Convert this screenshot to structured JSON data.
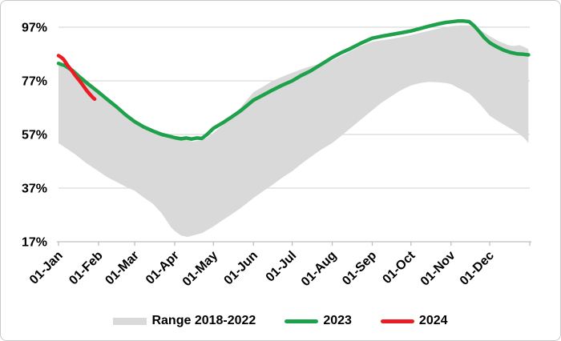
{
  "chart_data": {
    "type": "line",
    "title": "",
    "grid": {
      "horizontal": true,
      "color": "#d9d9d9"
    },
    "axis_color": "#bfbfbf",
    "text_color": "#000000",
    "y_axis": {
      "tick_labels": [
        "97%",
        "77%",
        "57%",
        "37%",
        "17%"
      ],
      "tick_values": [
        97,
        77,
        57,
        37,
        17
      ],
      "min": 17,
      "max": 97
    },
    "x_axis": {
      "tick_labels": [
        "01-Jan",
        "01-Feb",
        "01-Mar",
        "01-Apr",
        "01-May",
        "01-Jun",
        "01-Jul",
        "01-Aug",
        "01-Sep",
        "01-Oct",
        "01-Nov",
        "01-Dec"
      ],
      "tick_days": [
        1,
        32,
        60,
        91,
        121,
        152,
        182,
        213,
        244,
        274,
        305,
        335,
        366
      ],
      "unit": "day-of-year"
    },
    "band": {
      "name": "Range 2018-2022",
      "color": "#d9d9d9",
      "days": [
        1,
        8,
        15,
        22,
        32,
        39,
        46,
        53,
        60,
        67,
        74,
        81,
        88,
        91,
        96,
        101,
        105,
        112,
        116,
        121,
        128,
        135,
        142,
        152,
        160,
        166,
        174,
        182,
        189,
        196,
        204,
        213,
        220,
        227,
        235,
        244,
        251,
        258,
        265,
        274,
        281,
        288,
        295,
        301,
        305,
        312,
        319,
        323,
        327,
        331,
        335,
        342,
        349,
        353,
        358,
        362,
        365
      ],
      "low": [
        53.8,
        51.5,
        49.2,
        46.5,
        43.3,
        41.0,
        39.3,
        37.5,
        36.0,
        33.5,
        31.2,
        27.5,
        22.5,
        21.0,
        19.3,
        18.8,
        19.3,
        20.2,
        21.3,
        22.7,
        25.0,
        27.2,
        29.5,
        33.3,
        36.0,
        38.0,
        40.8,
        43.3,
        46.0,
        48.5,
        51.2,
        53.8,
        56.5,
        59.3,
        62.5,
        66.0,
        68.8,
        71.0,
        73.2,
        75.3,
        76.2,
        76.6,
        76.5,
        76.2,
        75.8,
        74.0,
        72.3,
        70.5,
        68.5,
        66.3,
        64.0,
        61.8,
        59.8,
        58.7,
        57.2,
        55.5,
        53.8
      ],
      "high": [
        83.0,
        81.2,
        79.0,
        76.0,
        72.5,
        69.8,
        67.2,
        64.2,
        61.6,
        59.6,
        58.1,
        56.8,
        56.0,
        55.6,
        55.2,
        54.8,
        54.4,
        54.8,
        55.8,
        57.5,
        60.5,
        63.8,
        67.0,
        72.8,
        75.0,
        76.8,
        78.5,
        80.0,
        81.3,
        82.4,
        83.4,
        84.6,
        86.3,
        88.0,
        90.0,
        91.6,
        92.1,
        92.6,
        93.2,
        94.1,
        94.9,
        95.7,
        96.5,
        97.1,
        97.4,
        97.7,
        97.7,
        97.3,
        96.2,
        94.9,
        93.7,
        91.8,
        90.4,
        90.0,
        90.3,
        89.6,
        88.8
      ]
    },
    "series": [
      {
        "name": "2023",
        "color": "#1fa14c",
        "days": [
          1,
          6,
          12,
          18,
          24,
          32,
          39,
          46,
          53,
          60,
          67,
          74,
          81,
          88,
          91,
          96,
          100,
          104,
          108,
          112,
          116,
          121,
          128,
          135,
          142,
          152,
          160,
          166,
          174,
          182,
          189,
          196,
          204,
          213,
          220,
          227,
          235,
          244,
          251,
          258,
          265,
          274,
          281,
          288,
          295,
          301,
          305,
          310,
          315,
          319,
          323,
          327,
          331,
          335,
          340,
          346,
          351,
          356,
          361,
          365
        ],
        "values": [
          83.5,
          82.6,
          80.8,
          78.2,
          75.8,
          72.8,
          70.0,
          67.3,
          64.3,
          61.8,
          59.8,
          58.3,
          57.0,
          56.2,
          55.8,
          55.4,
          55.7,
          55.3,
          55.7,
          55.5,
          57.0,
          59.3,
          61.3,
          63.5,
          65.8,
          69.8,
          71.8,
          73.4,
          75.3,
          77.0,
          79.0,
          80.6,
          83.0,
          85.7,
          87.5,
          89.0,
          91.0,
          92.9,
          93.6,
          94.2,
          94.8,
          95.6,
          96.5,
          97.4,
          98.2,
          98.8,
          99.0,
          99.3,
          99.3,
          99.1,
          97.5,
          95.3,
          93.0,
          91.2,
          89.8,
          88.4,
          87.6,
          87.1,
          86.9,
          86.7
        ]
      },
      {
        "name": "2024",
        "color": "#ec1c24",
        "days": [
          1,
          3,
          5,
          8,
          11,
          14,
          17,
          20,
          23,
          26,
          28,
          29
        ],
        "values": [
          86.4,
          85.8,
          85.0,
          82.8,
          81.0,
          79.0,
          77.2,
          75.3,
          73.3,
          71.6,
          70.6,
          70.2
        ]
      }
    ],
    "legend": {
      "position": "bottom",
      "items": [
        {
          "label": "Range 2018-2022",
          "swatch": "area",
          "color": "#d9d9d9"
        },
        {
          "label": "2023",
          "swatch": "line",
          "color": "#1fa14c"
        },
        {
          "label": "2024",
          "swatch": "line",
          "color": "#ec1c24"
        }
      ]
    }
  }
}
